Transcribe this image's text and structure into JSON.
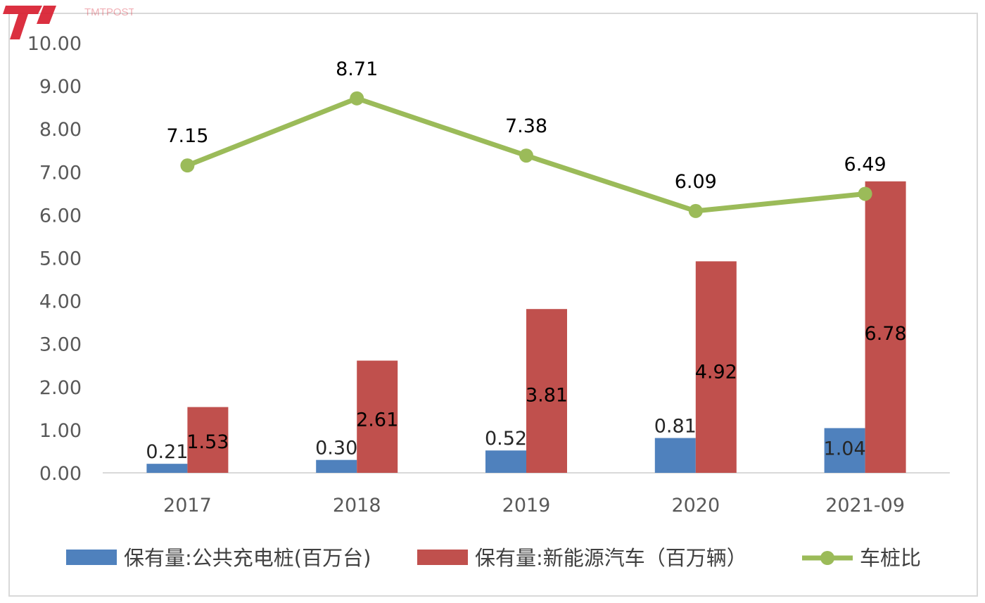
{
  "chart_data": {
    "type": "bar+line",
    "categories": [
      "2017",
      "2018",
      "2019",
      "2020",
      "2021-09"
    ],
    "ylim": [
      0,
      10
    ],
    "yticks": [
      "0.00",
      "1.00",
      "2.00",
      "3.00",
      "4.00",
      "5.00",
      "6.00",
      "7.00",
      "8.00",
      "9.00",
      "10.00"
    ],
    "grid": false,
    "legend_position": "bottom",
    "series": [
      {
        "name": "保有量:公共充电桩(百万台)",
        "type": "bar",
        "color": "#4f81bd",
        "values": [
          0.21,
          0.3,
          0.52,
          0.81,
          1.04
        ],
        "labels": [
          "0.21",
          "0.30",
          "0.52",
          "0.81",
          "1.04"
        ]
      },
      {
        "name": "保有量:新能源汽车（百万辆）",
        "type": "bar",
        "color": "#c0504d",
        "values": [
          1.53,
          2.61,
          3.81,
          4.92,
          6.78
        ],
        "labels": [
          "1.53",
          "2.61",
          "3.81",
          "4.92",
          "6.78"
        ]
      },
      {
        "name": "车桩比",
        "type": "line",
        "color": "#9bbb59",
        "values": [
          7.15,
          8.71,
          7.38,
          6.09,
          6.49
        ],
        "labels": [
          "7.15",
          "8.71",
          "7.38",
          "6.09",
          "6.49"
        ]
      }
    ]
  },
  "watermark": {
    "text": "TMTPOST",
    "icon": "tmtpost-logo-icon",
    "color": "#d71a2b"
  }
}
